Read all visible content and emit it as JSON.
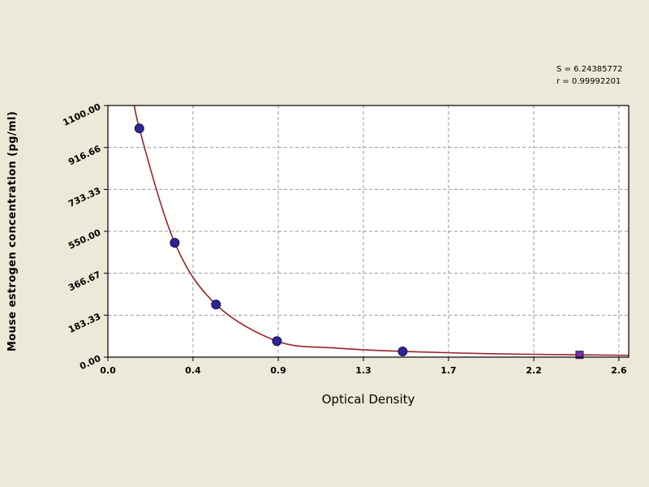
{
  "chart_data": {
    "type": "scatter",
    "title": "",
    "xlabel": "Optical Density",
    "ylabel": "Mouse estrogen concentration (pg/ml)",
    "xlim": [
      0,
      2.65
    ],
    "ylim": [
      0,
      1100
    ],
    "grid": "dashed",
    "legend": "none",
    "x_tick_values": [
      0,
      0.433,
      0.867,
      1.3,
      1.733,
      2.167,
      2.6
    ],
    "x_tick_labels": [
      "0.0",
      "0.4",
      "0.9",
      "1.3",
      "1.7",
      "2.2",
      "2.6"
    ],
    "y_tick_values": [
      0,
      183.33,
      366.67,
      550,
      733.33,
      916.66,
      1100
    ],
    "y_tick_labels": [
      "0.00",
      "183.33",
      "366.67",
      "550.00",
      "733.33",
      "916.66",
      "1100.00"
    ],
    "points": [
      {
        "x": 0.16,
        "y": 1000,
        "marker": "circle"
      },
      {
        "x": 0.34,
        "y": 500,
        "marker": "circle"
      },
      {
        "x": 0.55,
        "y": 230,
        "marker": "circle"
      },
      {
        "x": 0.86,
        "y": 70,
        "marker": "circle"
      },
      {
        "x": 1.5,
        "y": 25,
        "marker": "circle"
      },
      {
        "x": 2.4,
        "y": 10,
        "marker": "square"
      }
    ],
    "curve": [
      [
        0.12,
        1200
      ],
      [
        0.16,
        1000
      ],
      [
        0.34,
        500
      ],
      [
        0.55,
        230
      ],
      [
        0.86,
        70
      ],
      [
        1.15,
        40
      ],
      [
        1.5,
        25
      ],
      [
        1.95,
        15
      ],
      [
        2.4,
        10
      ],
      [
        2.65,
        8
      ]
    ],
    "annotations": [
      "S = 6.24385772",
      "r = 0.99992201"
    ],
    "colors": {
      "background": "#ece9d8",
      "plot_bg": "#ffffff",
      "curve": "#9b2226",
      "point": "#2f2397",
      "square": "#7b2f9e",
      "grid": "#999999",
      "frame": "#000000",
      "text": "#000000"
    }
  }
}
